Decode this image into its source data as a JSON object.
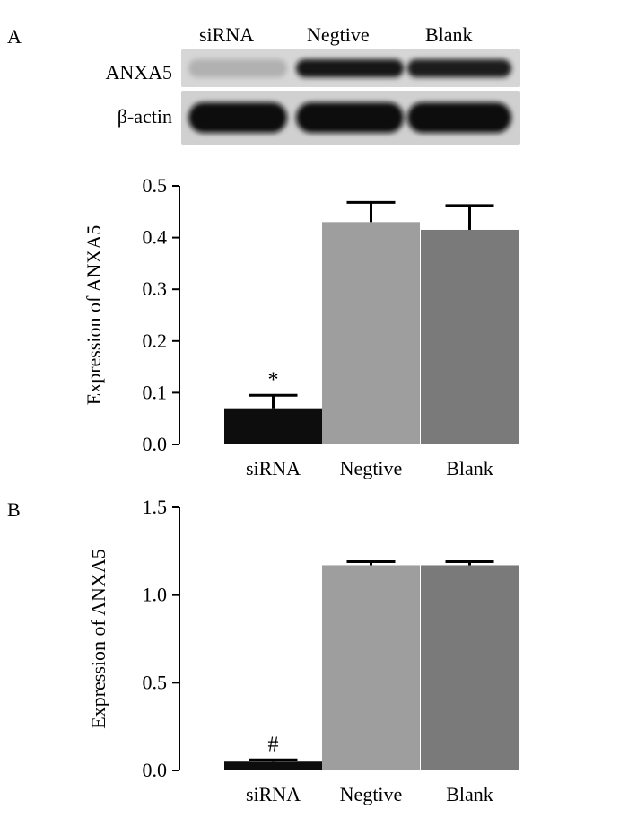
{
  "panels": {
    "a": {
      "letter": "A"
    },
    "b": {
      "letter": "B"
    }
  },
  "blot": {
    "lanes": [
      "siRNA",
      "Negtive",
      "Blank"
    ],
    "rows": [
      {
        "label": "ANXA5",
        "intensity": [
          0.12,
          0.95,
          0.9
        ]
      },
      {
        "label": "β-actin",
        "intensity": [
          1.0,
          1.0,
          1.0
        ]
      }
    ]
  },
  "chart_data": [
    {
      "type": "bar",
      "panel": "A",
      "categories": [
        "siRNA",
        "Negtive",
        "Blank"
      ],
      "values": [
        0.07,
        0.43,
        0.415
      ],
      "errors": [
        0.025,
        0.038,
        0.047
      ],
      "bar_colors": [
        "#0d0d0d",
        "#9e9e9e",
        "#7a7a7a"
      ],
      "annotations": [
        "*",
        "",
        ""
      ],
      "ylabel": "Expression of ANXA5",
      "xlabel": "",
      "ylim": [
        0,
        0.5
      ],
      "yticks": [
        "0.0",
        "0.1",
        "0.2",
        "0.3",
        "0.4",
        "0.5"
      ],
      "grid": false
    },
    {
      "type": "bar",
      "panel": "B",
      "categories": [
        "siRNA",
        "Negtive",
        "Blank"
      ],
      "values": [
        0.05,
        1.17,
        1.17
      ],
      "errors": [
        0.01,
        0.02,
        0.02
      ],
      "bar_colors": [
        "#0d0d0d",
        "#9e9e9e",
        "#7a7a7a"
      ],
      "annotations": [
        "#",
        "",
        ""
      ],
      "ylabel": "Expression of ANXA5",
      "xlabel": "",
      "ylim": [
        0,
        1.5
      ],
      "yticks": [
        "0.0",
        "0.5",
        "1.0",
        "1.5"
      ],
      "grid": false
    }
  ]
}
